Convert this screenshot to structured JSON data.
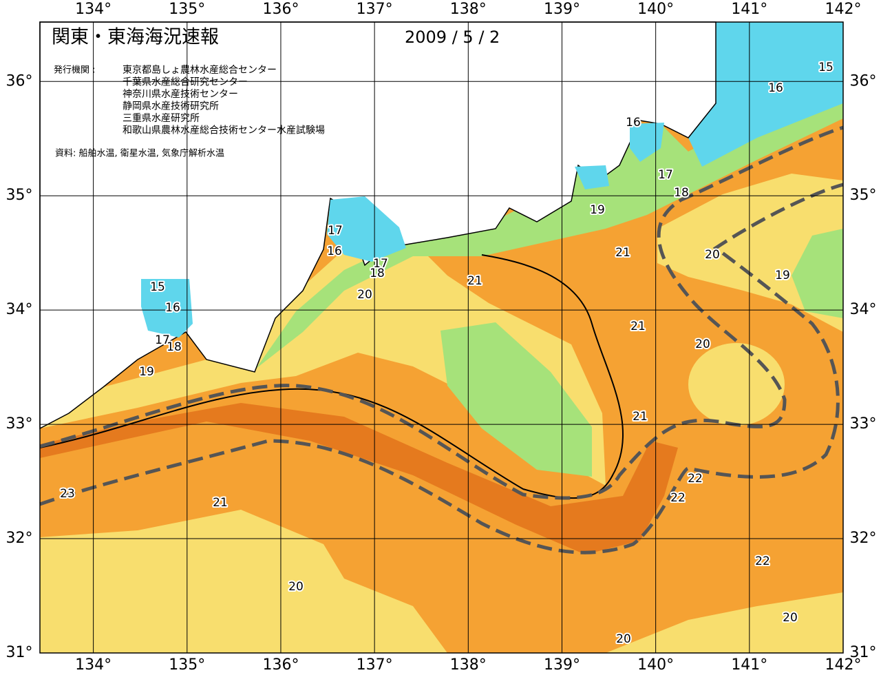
{
  "header": {
    "title": "関東・東海海況速報",
    "date": "2009 / 5 / 2",
    "issuer_label": "発行機関 :",
    "issuers": [
      "東京都島しょ農林水産総合センター",
      "千葉県水産総合研究センター",
      "神奈川県水産技術センター",
      "静岡県水産技術研究所",
      "三重県水産研究所",
      "和歌山県農林水産総合技術センター水産試験場"
    ],
    "source": "資料: 船舶水温, 衛星水温, 気象庁解析水温"
  },
  "map": {
    "xlim": [
      133.43,
      142
    ],
    "ylim": [
      31,
      36.52
    ],
    "xticks": [
      {
        "value": 134,
        "label": "134°"
      },
      {
        "value": 135,
        "label": "135°"
      },
      {
        "value": 136,
        "label": "136°"
      },
      {
        "value": 137,
        "label": "137°"
      },
      {
        "value": 138,
        "label": "138°"
      },
      {
        "value": 139,
        "label": "139°"
      },
      {
        "value": 140,
        "label": "140°"
      },
      {
        "value": 141,
        "label": "141°"
      },
      {
        "value": 142,
        "label": "142°"
      }
    ],
    "yticks": [
      {
        "value": 31,
        "label": "31°"
      },
      {
        "value": 32,
        "label": "32°"
      },
      {
        "value": 33,
        "label": "33°"
      },
      {
        "value": 34,
        "label": "34°"
      },
      {
        "value": 35,
        "label": "35°"
      },
      {
        "value": 36,
        "label": "36°"
      }
    ],
    "contour_labels": [
      15,
      16,
      16,
      17,
      18,
      19,
      21,
      20,
      19,
      17,
      16,
      17,
      18,
      21,
      20,
      15,
      16,
      17,
      18,
      19,
      21,
      20,
      21,
      22,
      22,
      23,
      21,
      22,
      20,
      20,
      20
    ]
  }
}
